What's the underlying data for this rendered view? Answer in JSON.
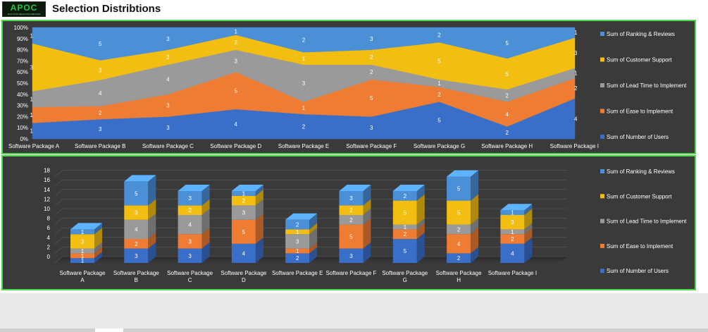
{
  "header": {
    "logo_text": "APOC",
    "logo_sub": "SOLUTION SELECTION METHOD",
    "title": "Selection Distribtions"
  },
  "colors": {
    "users": "#3a6fc9",
    "ease": "#ee7c33",
    "lead": "#9a9a9a",
    "support": "#f2be12",
    "ranking": "#4b8fd6",
    "panel_bg": "#3a3a3a",
    "panel_border": "#4cd64c"
  },
  "chart_data": [
    {
      "type": "area",
      "stacked": "percent",
      "categories": [
        "Software Package A",
        "Software Package B",
        "Software Package C",
        "Software Package D",
        "Software Package E",
        "Software Package F",
        "Software Package G",
        "Software Package H",
        "Software Package I"
      ],
      "series": [
        {
          "key": "users",
          "name": "Sum of Number of Users",
          "values": [
            1,
            3,
            3,
            4,
            2,
            3,
            5,
            2,
            4
          ]
        },
        {
          "key": "ease",
          "name": "Sum of Ease to Implement",
          "values": [
            1,
            2,
            3,
            5,
            1,
            5,
            2,
            4,
            2
          ]
        },
        {
          "key": "lead",
          "name": "Sum of Lead Time to Implement",
          "values": [
            1,
            4,
            4,
            3,
            3,
            2,
            1,
            2,
            1
          ]
        },
        {
          "key": "support",
          "name": "Sum of Customer Support",
          "values": [
            3,
            3,
            2,
            2,
            1,
            2,
            5,
            5,
            3
          ]
        },
        {
          "key": "ranking",
          "name": "Sum of Ranking & Reviews",
          "values": [
            1,
            5,
            3,
            1,
            2,
            3,
            2,
            5,
            1
          ]
        }
      ],
      "yticks": [
        "0%",
        "10%",
        "20%",
        "30%",
        "40%",
        "50%",
        "60%",
        "70%",
        "80%",
        "90%",
        "100%"
      ],
      "ylim": [
        0,
        100
      ],
      "legend": "right"
    },
    {
      "type": "bar",
      "stacked": true,
      "style": "3d-column",
      "categories": [
        "Software Package\nA",
        "Software Package\nB",
        "Software Package\nC",
        "Software Package\nD",
        "Software Package E",
        "Software Package F",
        "Software Package\nG",
        "Software Package\nH",
        "Software Package I"
      ],
      "series": [
        {
          "key": "users",
          "name": "Sum of Number of Users",
          "values": [
            1,
            3,
            3,
            4,
            2,
            3,
            5,
            2,
            4
          ]
        },
        {
          "key": "ease",
          "name": "Sum of Ease to Implement",
          "values": [
            1,
            2,
            3,
            5,
            1,
            5,
            2,
            4,
            2
          ]
        },
        {
          "key": "lead",
          "name": "Sum of Lead Time to Implement",
          "values": [
            1,
            4,
            4,
            3,
            3,
            2,
            1,
            2,
            1
          ]
        },
        {
          "key": "support",
          "name": "Sum of Customer Support",
          "values": [
            3,
            3,
            2,
            2,
            1,
            2,
            5,
            5,
            3
          ]
        },
        {
          "key": "ranking",
          "name": "Sum of Ranking & Reviews",
          "values": [
            1,
            5,
            3,
            1,
            2,
            3,
            2,
            5,
            1
          ]
        }
      ],
      "yticks": [
        "0",
        "2",
        "4",
        "6",
        "8",
        "10",
        "12",
        "14",
        "16",
        "18"
      ],
      "ylim": [
        0,
        18
      ],
      "legend": "right"
    }
  ]
}
